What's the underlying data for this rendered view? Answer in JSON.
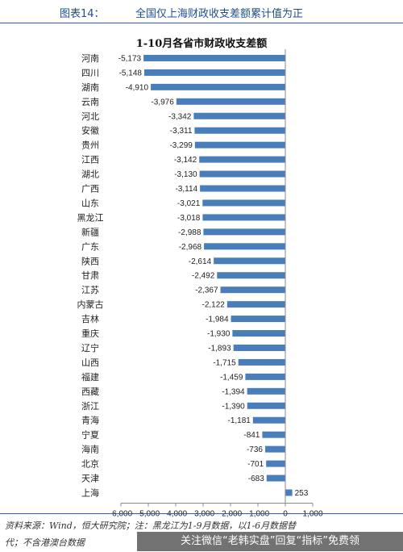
{
  "header": {
    "figure_number": "图表14：",
    "figure_title": "全国仅上海财政收支差额累计值为正"
  },
  "chart_data": {
    "type": "bar",
    "orientation": "horizontal",
    "title": "1-10月各省市财政收支差额",
    "categories": [
      "河南",
      "四川",
      "湖南",
      "云南",
      "河北",
      "安徽",
      "贵州",
      "江西",
      "湖北",
      "广西",
      "山东",
      "黑龙江",
      "新疆",
      "广东",
      "陕西",
      "甘肃",
      "江苏",
      "内蒙古",
      "吉林",
      "重庆",
      "辽宁",
      "山西",
      "福建",
      "西藏",
      "浙江",
      "青海",
      "宁夏",
      "海南",
      "北京",
      "天津",
      "上海"
    ],
    "values": [
      -5173,
      -5148,
      -4910,
      -3976,
      -3342,
      -3311,
      -3299,
      -3142,
      -3130,
      -3114,
      -3021,
      -3018,
      -2988,
      -2968,
      -2614,
      -2492,
      -2367,
      -2122,
      -1984,
      -1930,
      -1893,
      -1715,
      -1459,
      -1394,
      -1390,
      -1181,
      -841,
      -736,
      -701,
      -683,
      253
    ],
    "value_labels": [
      "-5,173",
      "-5,148",
      "-4,910",
      "-3,976",
      "-3,342",
      "-3,311",
      "-3,299",
      "-3,142",
      "-3,130",
      "-3,114",
      "-3,021",
      "-3,018",
      "-2,988",
      "-2,968",
      "-2,614",
      "-2,492",
      "-2,367",
      "-2,122",
      "-1,984",
      "-1,930",
      "-1,893",
      "-1,715",
      "-1,459",
      "-1,394",
      "-1,390",
      "-1,181",
      "-841",
      "-736",
      "-701",
      "-683",
      "253"
    ],
    "xlim": [
      -6000,
      1000
    ],
    "x_ticks": [
      -6000,
      -5000,
      -4000,
      -3000,
      -2000,
      -1000,
      0,
      1000
    ],
    "x_tick_labels": [
      "-6,000",
      "-5,000",
      "-4,000",
      "-3,000",
      "-2,000",
      "-1,000",
      "0",
      "1,000"
    ],
    "grid": false,
    "bar_color": "#4a7ebb"
  },
  "footer": {
    "line1": "资料来源：Wind，恒大研究院；注：黑龙江为1-9月数据，以1-6月数据替",
    "line2": "代；不含港澳台数据"
  },
  "watermark": {
    "text": "关注微信“老韩实盘”回复“指标”免费领"
  }
}
